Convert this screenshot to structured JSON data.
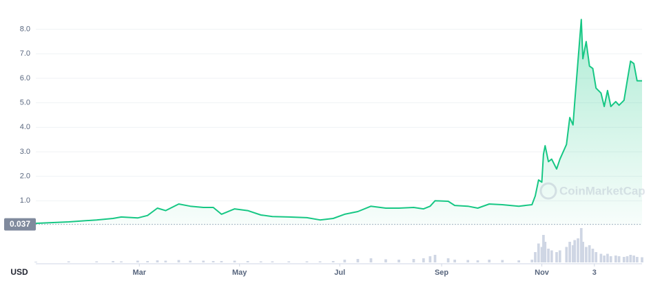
{
  "chart_data": {
    "type": "line",
    "series": [
      {
        "name": "Price",
        "color": "#16c784",
        "values": [
          0.08,
          0.14,
          0.22,
          0.28,
          0.34,
          0.3,
          0.4,
          0.7,
          0.6,
          0.87,
          0.78,
          0.73,
          0.73,
          0.45,
          0.67,
          0.6,
          0.42,
          0.36,
          0.34,
          0.31,
          0.22,
          0.28,
          0.45,
          0.56,
          0.78,
          0.7,
          0.7,
          0.73,
          0.67,
          0.78,
          1.0,
          0.98,
          0.81,
          0.78,
          0.7,
          0.87,
          0.84,
          0.78,
          0.84,
          1.2,
          1.85,
          1.76,
          2.9,
          3.25,
          2.6,
          2.7,
          2.3,
          2.7,
          3.3,
          4.4,
          4.1,
          5.0,
          6.7,
          8.4,
          6.8,
          7.5,
          6.5,
          6.4,
          5.6,
          5.4,
          4.85,
          5.5,
          4.85,
          5.05,
          4.9,
          5.1,
          5.9,
          6.7,
          6.6,
          5.9,
          5.9
        ]
      }
    ],
    "x": [
      -4,
      16,
      33,
      43,
      48,
      58,
      64,
      70,
      75,
      83,
      90,
      98,
      104,
      109,
      117,
      125,
      133,
      140,
      150,
      161,
      169,
      177,
      184,
      192,
      200,
      209,
      217,
      226,
      232,
      236,
      239,
      247,
      251,
      259,
      265,
      272,
      280,
      290,
      298,
      300,
      302,
      304,
      305,
      306,
      308,
      310,
      313,
      315,
      319,
      321,
      323,
      324,
      326,
      328,
      329,
      331,
      333,
      335,
      337,
      340,
      342,
      344,
      346,
      349,
      351,
      354,
      356,
      358,
      360,
      362,
      365
    ],
    "volume": [
      2,
      3,
      3,
      4,
      3,
      5,
      4,
      6,
      5,
      7,
      5,
      5,
      4,
      4,
      5,
      4,
      3,
      3,
      3,
      3,
      3,
      4,
      8,
      10,
      12,
      9,
      8,
      10,
      12,
      18,
      22,
      12,
      8,
      7,
      6,
      8,
      7,
      6,
      8,
      30,
      55,
      45,
      80,
      60,
      40,
      35,
      30,
      35,
      45,
      60,
      50,
      65,
      70,
      100,
      60,
      45,
      50,
      40,
      30,
      25,
      20,
      25,
      18,
      20,
      18,
      16,
      18,
      22,
      20,
      16,
      15
    ],
    "volume_lim": [
      0,
      100
    ],
    "xlim": [
      -4,
      365
    ],
    "xticks": [
      {
        "value": 59,
        "label": "Mar"
      },
      {
        "value": 120,
        "label": "May"
      },
      {
        "value": 181,
        "label": "Jul"
      },
      {
        "value": 243,
        "label": "Sep"
      },
      {
        "value": 304,
        "label": "Nov"
      },
      {
        "value": 336,
        "label": "3"
      }
    ],
    "ylim": [
      0,
      9
    ],
    "yticks": [
      {
        "value": 1,
        "label": "1.0"
      },
      {
        "value": 2,
        "label": "2.0"
      },
      {
        "value": 3,
        "label": "3.0"
      },
      {
        "value": 4,
        "label": "4.0"
      },
      {
        "value": 5,
        "label": "5.0"
      },
      {
        "value": 6,
        "label": "6.0"
      },
      {
        "value": 7,
        "label": "7.0"
      },
      {
        "value": 8,
        "label": "8.0"
      }
    ],
    "baseline": {
      "value": 0.037,
      "label": "0.037"
    },
    "currency_label": "USD",
    "watermark": "CoinMarketCap",
    "grid": true
  }
}
